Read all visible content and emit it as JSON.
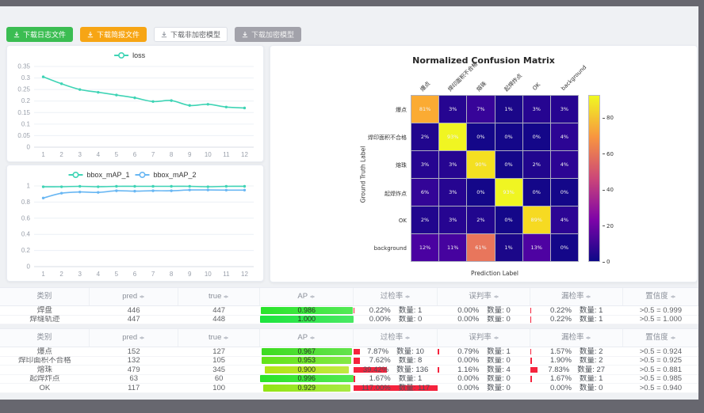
{
  "toolbar": {
    "buttons": [
      {
        "label": "下载日志文件",
        "variant": "green"
      },
      {
        "label": "下载简报文件",
        "variant": "orange"
      },
      {
        "label": "下载非加密模型",
        "variant": "white"
      },
      {
        "label": "下载加密模型",
        "variant": "gray"
      }
    ]
  },
  "chart_data": [
    {
      "type": "line",
      "title": "loss",
      "legend": [
        "loss"
      ],
      "colors": [
        "#3fd4b5"
      ],
      "x": [
        1,
        2,
        3,
        4,
        5,
        6,
        7,
        8,
        9,
        10,
        11,
        12
      ],
      "series": [
        {
          "name": "loss",
          "values": [
            0.305,
            0.275,
            0.25,
            0.238,
            0.226,
            0.214,
            0.198,
            0.202,
            0.181,
            0.186,
            0.174,
            0.17
          ]
        }
      ],
      "ylim": [
        0,
        0.35
      ],
      "yticks": [
        0,
        0.05,
        0.1,
        0.15,
        0.2,
        0.25,
        0.3,
        0.35
      ],
      "grid": true,
      "legend_position": "top"
    },
    {
      "type": "line",
      "title": "bbox_mAP",
      "legend": [
        "bbox_mAP_1",
        "bbox_mAP_2"
      ],
      "colors": [
        "#3fd4b5",
        "#69b7f3"
      ],
      "x": [
        1,
        2,
        3,
        4,
        5,
        6,
        7,
        8,
        9,
        10,
        11,
        12
      ],
      "series": [
        {
          "name": "bbox_mAP_1",
          "values": [
            0.99,
            0.99,
            0.995,
            0.99,
            0.995,
            0.995,
            0.995,
            0.995,
            0.995,
            0.99,
            0.995,
            0.995
          ]
        },
        {
          "name": "bbox_mAP_2",
          "values": [
            0.85,
            0.91,
            0.925,
            0.92,
            0.94,
            0.935,
            0.94,
            0.94,
            0.95,
            0.95,
            0.948,
            0.948
          ]
        }
      ],
      "ylim": [
        0,
        1
      ],
      "yticks": [
        0,
        0.2,
        0.4,
        0.6,
        0.8,
        1
      ],
      "grid": true,
      "legend_position": "top"
    },
    {
      "type": "heatmap",
      "title": "Normalized Confusion Matrix",
      "xlabel": "Prediction Label",
      "ylabel": "Ground Truth Label",
      "x_labels": [
        "爆点",
        "焊印面积不合格",
        "熔珠",
        "起焊炸点",
        "OK",
        "background"
      ],
      "y_labels": [
        "爆点",
        "焊印面积不合格",
        "熔珠",
        "起焊炸点",
        "OK",
        "background"
      ],
      "values_percent": [
        [
          81,
          3,
          7,
          1,
          3,
          3
        ],
        [
          2,
          93,
          0,
          0,
          0,
          4
        ],
        [
          3,
          3,
          90,
          0,
          2,
          4
        ],
        [
          6,
          3,
          0,
          93,
          0,
          0
        ],
        [
          2,
          3,
          2,
          0,
          89,
          4
        ],
        [
          12,
          11,
          61,
          1,
          13,
          0
        ]
      ],
      "cell_colors": [
        [
          "#fbab33",
          "#260591",
          "#370499",
          "#1b0789",
          "#260591",
          "#260591"
        ],
        [
          "#21068e",
          "#f0f522",
          "#140789",
          "#140789",
          "#140789",
          "#2c0594"
        ],
        [
          "#260591",
          "#260591",
          "#f4e021",
          "#140789",
          "#21068e",
          "#2c0594"
        ],
        [
          "#330597",
          "#260591",
          "#140789",
          "#f0f522",
          "#140789",
          "#140789"
        ],
        [
          "#21068e",
          "#260591",
          "#21068e",
          "#140789",
          "#f6da22",
          "#2c0594"
        ],
        [
          "#4a02a1",
          "#46039f",
          "#e8765c",
          "#1b0789",
          "#4e02a2",
          "#140789"
        ]
      ],
      "colorbar": {
        "min": 0,
        "max": 93,
        "ticks": [
          0,
          20,
          40,
          60,
          80
        ]
      }
    }
  ],
  "tables": {
    "headers": [
      {
        "label": "类别",
        "sortable": false
      },
      {
        "label": "pred",
        "sortable": true
      },
      {
        "label": "true",
        "sortable": true
      },
      {
        "label": "AP",
        "sortable": true
      },
      {
        "label": "过检率",
        "sortable": true
      },
      {
        "label": "误判率",
        "sortable": true
      },
      {
        "label": "漏检率",
        "sortable": true
      },
      {
        "label": "置信度",
        "sortable": true
      }
    ],
    "table1_rows": [
      {
        "cls": "焊盘",
        "pred": "446",
        "true": "447",
        "ap": "0.986",
        "ap_color": "#29e42b",
        "over": {
          "pct": "0.22%",
          "count": "数量: 1",
          "w": 0.22
        },
        "mis": {
          "pct": "0.00%",
          "count": "数量: 0",
          "w": 0
        },
        "miss": {
          "pct": "0.22%",
          "count": "数量: 1",
          "w": 0.22
        },
        "conf": ">0.5 = 0.999"
      },
      {
        "cls": "焊缝轨迹",
        "pred": "447",
        "true": "448",
        "ap": "1.000",
        "ap_color": "#1ce43c",
        "over": {
          "pct": "0.00%",
          "count": "数量: 0",
          "w": 0
        },
        "mis": {
          "pct": "0.00%",
          "count": "数量: 0",
          "w": 0
        },
        "miss": {
          "pct": "0.22%",
          "count": "数量: 1",
          "w": 0.22
        },
        "conf": ">0.5 = 1.000"
      }
    ],
    "table2_rows": [
      {
        "cls": "爆点",
        "pred": "152",
        "true": "127",
        "ap": "0.967",
        "ap_color": "#3ddc20",
        "over": {
          "pct": "7.87%",
          "count": "数量: 10",
          "w": 7.87
        },
        "mis": {
          "pct": "0.79%",
          "count": "数量: 1",
          "w": 0.79
        },
        "miss": {
          "pct": "1.57%",
          "count": "数量: 2",
          "w": 1.57
        },
        "conf": ">0.5 = 0.924"
      },
      {
        "cls": "焊印面积不合格",
        "pred": "132",
        "true": "105",
        "ap": "0.953",
        "ap_color": "#63e318",
        "over": {
          "pct": "7.62%",
          "count": "数量: 8",
          "w": 7.62
        },
        "mis": {
          "pct": "0.00%",
          "count": "数量: 0",
          "w": 0
        },
        "miss": {
          "pct": "1.90%",
          "count": "数量: 2",
          "w": 1.9
        },
        "conf": ">0.5 = 0.925"
      },
      {
        "cls": "熔珠",
        "pred": "479",
        "true": "345",
        "ap": "0.900",
        "ap_color": "#b3e414",
        "over": {
          "pct": "39.42%",
          "count": "数量: 136",
          "w": 39.42
        },
        "mis": {
          "pct": "1.16%",
          "count": "数量: 4",
          "w": 1.16
        },
        "miss": {
          "pct": "7.83%",
          "count": "数量: 27",
          "w": 7.83
        },
        "conf": ">0.5 = 0.881"
      },
      {
        "cls": "起焊炸点",
        "pred": "63",
        "true": "60",
        "ap": "0.996",
        "ap_color": "#2ae328",
        "over": {
          "pct": "1.67%",
          "count": "数量: 1",
          "w": 1.67
        },
        "mis": {
          "pct": "0.00%",
          "count": "数量: 0",
          "w": 0
        },
        "miss": {
          "pct": "1.67%",
          "count": "数量: 1",
          "w": 1.67
        },
        "conf": ">0.5 = 0.985"
      },
      {
        "cls": "OK",
        "pred": "117",
        "true": "100",
        "ap": "0.929",
        "ap_color": "#92e414",
        "over": {
          "pct": "117.00%",
          "count": "数量: 117",
          "w": 100
        },
        "mis": {
          "pct": "0.00%",
          "count": "数量: 0",
          "w": 0
        },
        "miss": {
          "pct": "0.00%",
          "count": "数量: 0",
          "w": 0
        },
        "conf": ">0.5 = 0.940"
      }
    ]
  }
}
